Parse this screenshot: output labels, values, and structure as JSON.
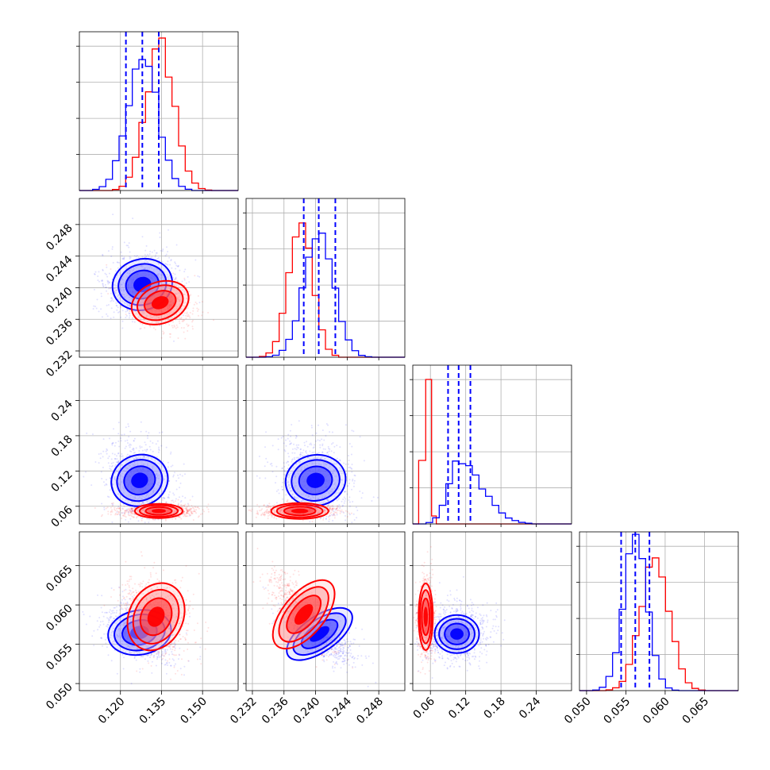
{
  "colors": {
    "blue": "#0000ff",
    "red": "#ff0000",
    "grid": "#b0b0b0"
  },
  "chart_data": {
    "type": "corner",
    "grid": true,
    "params": [
      {
        "id": "p1",
        "ticks": [
          "0.120",
          "0.135",
          "0.150"
        ],
        "tick_values": [
          0.12,
          0.135,
          0.15
        ],
        "range": [
          0.105,
          0.163
        ],
        "blue": {
          "mean": 0.128,
          "sd": 0.0055,
          "quantiles": [
            0.122,
            0.128,
            0.134
          ]
        },
        "red": {
          "mean": 0.1345,
          "sd": 0.0052
        }
      },
      {
        "id": "p2",
        "ticks": [
          "0.232",
          "0.236",
          "0.240",
          "0.244",
          "0.248"
        ],
        "tick_values": [
          0.232,
          0.236,
          0.24,
          0.244,
          0.248
        ],
        "range": [
          0.2312,
          0.2513
        ],
        "blue": {
          "mean": 0.2404,
          "sd": 0.0019,
          "quantiles": [
            0.2385,
            0.2404,
            0.2425
          ]
        },
        "red": {
          "mean": 0.2381,
          "sd": 0.0015
        }
      },
      {
        "id": "p3",
        "ticks": [
          "0.06",
          "0.12",
          "0.18",
          "0.24"
        ],
        "tick_values": [
          0.06,
          0.12,
          0.18,
          0.24
        ],
        "range": [
          0.03,
          0.3
        ],
        "blue": {
          "mean": 0.108,
          "sd": 0.018,
          "quantiles": [
            0.09,
            0.108,
            0.128
          ]
        },
        "red": {
          "mean": 0.052,
          "sd": 0.004
        }
      },
      {
        "id": "p4",
        "ticks": [
          "0.050",
          "0.055",
          "0.060",
          "0.065"
        ],
        "tick_values": [
          0.05,
          0.055,
          0.06,
          0.065
        ],
        "range": [
          0.0491,
          0.0693
        ],
        "blue": {
          "mean": 0.0562,
          "sd": 0.0015,
          "quantiles": [
            0.0544,
            0.0562,
            0.058
          ]
        },
        "red": {
          "mean": 0.0587,
          "sd": 0.0018
        }
      }
    ],
    "pairs": [
      {
        "row": 1,
        "col": 0,
        "blue_center": [
          0.128,
          0.2404
        ],
        "red_center": [
          0.1345,
          0.2381
        ]
      },
      {
        "row": 2,
        "col": 0,
        "blue_center": [
          0.127,
          0.104
        ],
        "red_center": [
          0.134,
          0.052
        ]
      },
      {
        "row": 2,
        "col": 1,
        "blue_center": [
          0.24,
          0.104
        ],
        "red_center": [
          0.238,
          0.052
        ]
      },
      {
        "row": 3,
        "col": 0,
        "blue_center": [
          0.127,
          0.0565
        ],
        "red_center": [
          0.133,
          0.0585
        ]
      },
      {
        "row": 3,
        "col": 1,
        "blue_center": [
          0.2405,
          0.0563
        ],
        "red_center": [
          0.2385,
          0.0588
        ]
      },
      {
        "row": 3,
        "col": 2,
        "blue_center": [
          0.105,
          0.0563
        ],
        "red_center": [
          0.052,
          0.0585
        ]
      }
    ]
  }
}
